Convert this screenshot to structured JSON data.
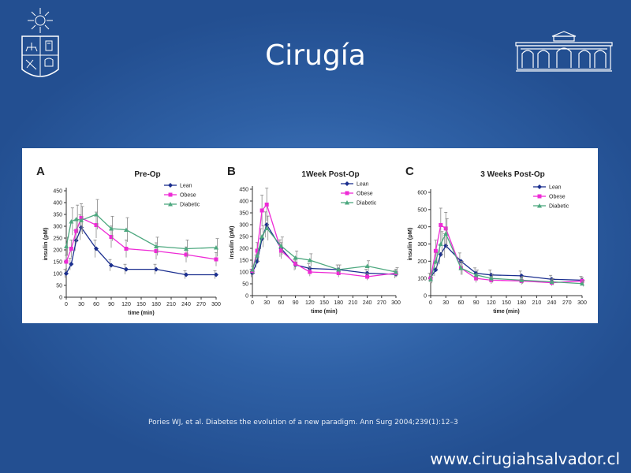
{
  "slide": {
    "title": "Cirugía",
    "citation": "Pories WJ, et al. Diabetes the evolution of a new paradigm. Ann Surg 2004;239(1):12–3",
    "url": "www.cirugiahsalvador.cl"
  },
  "logos": {
    "left_icon": "university-crest-icon",
    "right_icon": "building-facade-icon"
  },
  "colors": {
    "lean": "#1b2f8f",
    "obese": "#ee2bd6",
    "diabetic": "#4da87f",
    "errorbar": "#888888"
  },
  "chart_data": [
    {
      "type": "line",
      "panel": "A",
      "title": "Pre-Op",
      "xlabel": "time (min)",
      "ylabel": "insulin (pM)",
      "x": [
        0,
        10,
        20,
        30,
        60,
        90,
        120,
        180,
        240,
        300
      ],
      "xticks": [
        0,
        30,
        60,
        90,
        120,
        150,
        180,
        210,
        240,
        270,
        300
      ],
      "yticks": [
        0,
        50,
        100,
        150,
        200,
        250,
        300,
        350,
        400,
        450
      ],
      "xlim": [
        0,
        300
      ],
      "ylim": [
        0,
        450
      ],
      "legend_position": "top-right",
      "series": [
        {
          "name": "Lean",
          "values": [
            100,
            140,
            240,
            295,
            205,
            135,
            118,
            118,
            95,
            95
          ]
        },
        {
          "name": "Obese",
          "values": [
            150,
            205,
            280,
            335,
            305,
            255,
            205,
            195,
            180,
            160
          ]
        },
        {
          "name": "Diabetic",
          "values": [
            215,
            320,
            330,
            325,
            350,
            290,
            285,
            215,
            205,
            210
          ]
        }
      ]
    },
    {
      "type": "line",
      "panel": "B",
      "title": "1Week Post-Op",
      "xlabel": "time (min)",
      "ylabel": "insulin (pM)",
      "x": [
        0,
        10,
        20,
        30,
        60,
        90,
        120,
        180,
        240,
        300
      ],
      "xticks": [
        0,
        30,
        60,
        90,
        120,
        150,
        180,
        210,
        240,
        270,
        300
      ],
      "yticks": [
        0,
        50,
        100,
        150,
        200,
        250,
        300,
        350,
        400,
        450
      ],
      "xlim": [
        0,
        300
      ],
      "ylim": [
        0,
        450
      ],
      "legend_position": "top-right",
      "series": [
        {
          "name": "Lean",
          "values": [
            95,
            145,
            240,
            300,
            200,
            130,
            115,
            110,
            95,
            90
          ]
        },
        {
          "name": "Obese",
          "values": [
            105,
            190,
            360,
            385,
            190,
            135,
            100,
            95,
            80,
            95
          ]
        },
        {
          "name": "Diabetic",
          "values": [
            110,
            170,
            250,
            285,
            210,
            160,
            150,
            110,
            125,
            100
          ]
        }
      ]
    },
    {
      "type": "line",
      "panel": "C",
      "title": "3 Weeks Post-Op",
      "xlabel": "time (min)",
      "ylabel": "insulin (pM)",
      "x": [
        0,
        10,
        20,
        30,
        60,
        90,
        120,
        180,
        240,
        300
      ],
      "xticks": [
        0,
        30,
        60,
        90,
        120,
        150,
        180,
        210,
        240,
        270,
        300
      ],
      "yticks": [
        0,
        100,
        200,
        300,
        400,
        500,
        600
      ],
      "xlim": [
        0,
        300
      ],
      "ylim": [
        0,
        600
      ],
      "legend_position": "top-right",
      "series": [
        {
          "name": "Lean",
          "values": [
            105,
            150,
            240,
            290,
            200,
            130,
            120,
            115,
            95,
            90
          ]
        },
        {
          "name": "Obese",
          "values": [
            100,
            260,
            410,
            390,
            160,
            100,
            90,
            85,
            75,
            85
          ]
        },
        {
          "name": "Diabetic",
          "values": [
            95,
            200,
            300,
            360,
            160,
            120,
            100,
            90,
            80,
            70
          ]
        }
      ]
    }
  ]
}
